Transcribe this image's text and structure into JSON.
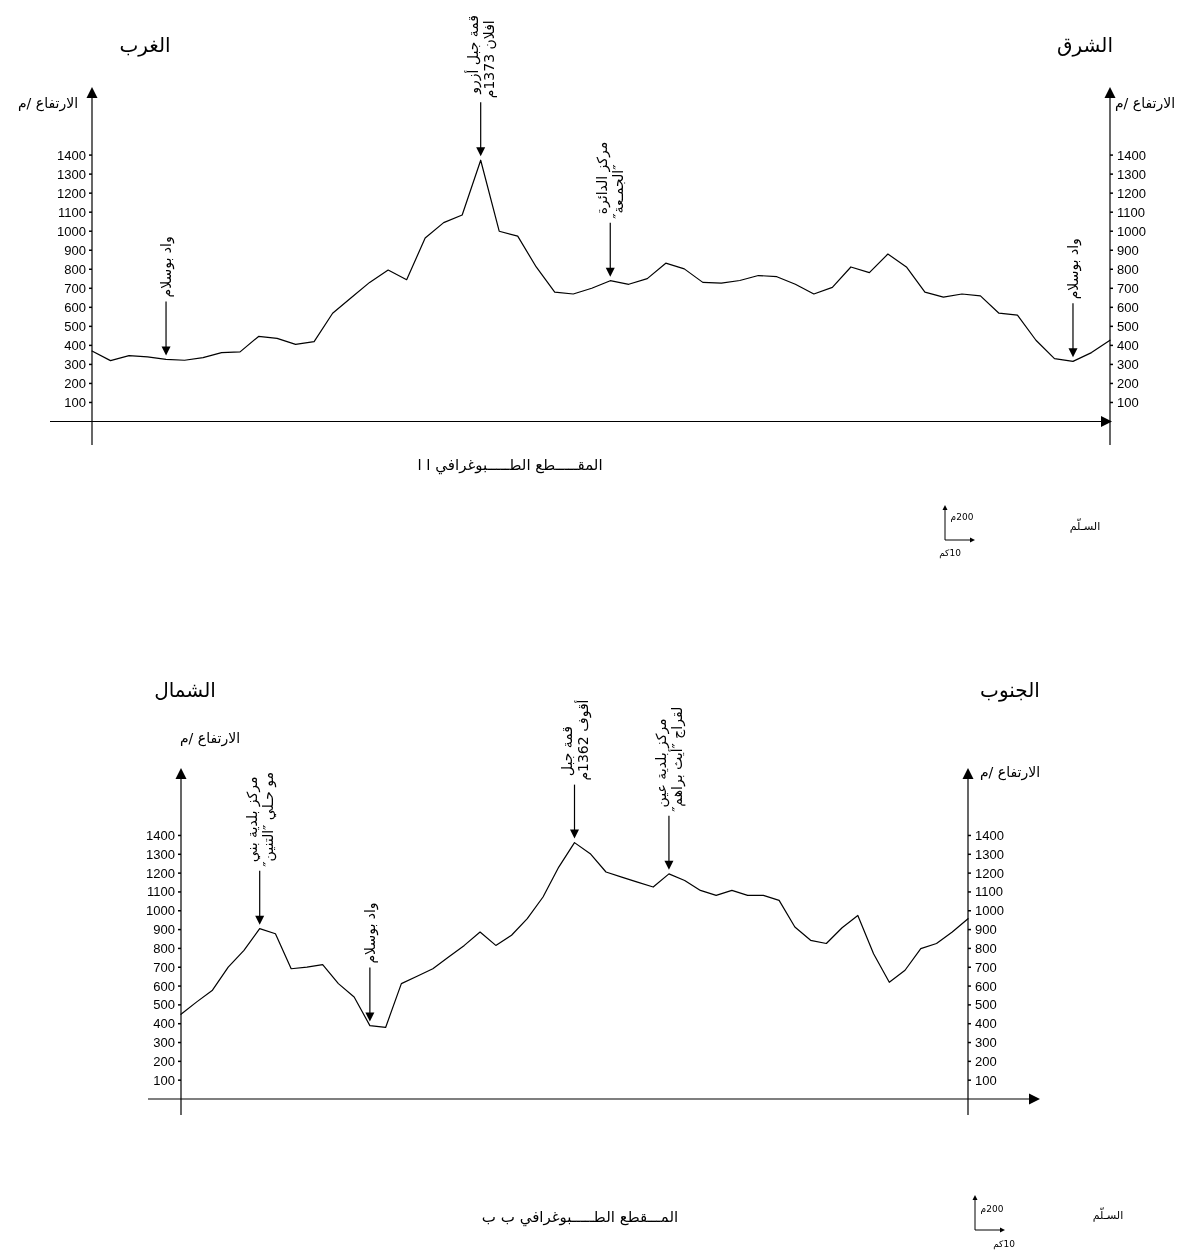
{
  "chart_data": [
    {
      "type": "line",
      "title": "المقـــــطع الطـــــبوغرافي ا ا",
      "ylabel": "الارتفاع /م",
      "y2label": "الارتفاع /م",
      "color": "#000000",
      "categories": [
        null,
        null,
        null,
        null,
        null,
        null,
        null,
        null,
        null,
        null,
        null,
        null,
        null,
        null,
        null,
        null,
        null,
        null,
        null,
        null,
        null,
        null,
        null,
        null,
        null,
        null,
        null,
        null,
        null,
        null,
        null,
        null,
        null,
        null,
        null,
        null,
        null,
        null,
        null,
        null,
        null,
        null,
        null,
        null,
        null,
        null,
        null,
        null,
        null,
        null,
        null,
        null,
        null,
        null,
        null,
        null
      ],
      "values": [
        370,
        320,
        346,
        340,
        326,
        322,
        336,
        362,
        366,
        447,
        437,
        405,
        420,
        569,
        650,
        731,
        796,
        745,
        964,
        1045,
        1085,
        1373,
        1000,
        974,
        812,
        680,
        670,
        700,
        740,
        721,
        751,
        832,
        802,
        731,
        727,
        741,
        767,
        761,
        721,
        670,
        705,
        812,
        782,
        880,
        812,
        680,
        654,
        670,
        660,
        569,
        559,
        427,
        330,
        316,
        362,
        427
      ],
      "ylim": [
        0,
        1700
      ],
      "yticks": [
        100,
        200,
        300,
        400,
        500,
        600,
        700,
        800,
        900,
        1000,
        1100,
        1200,
        1300,
        1400
      ],
      "y2lim": [
        0,
        1700
      ],
      "y2ticks": [
        100,
        200,
        300,
        400,
        500,
        600,
        700,
        800,
        900,
        1000,
        1100,
        1200,
        1300,
        1400
      ],
      "annotations": [
        "الغرب",
        "الشرق",
        "السـلّم",
        "200م",
        "10كم",
        "واد بوسلام",
        "قمة جبل أزرو افلان 1373م",
        "مركز الدائرة ″الجمـعة″",
        "واد بوسلام"
      ]
    },
    {
      "type": "line",
      "title": "المـــقطع الطـــــبوغرافي ب ب",
      "ylabel": "الارتفاع /م",
      "y2label": "الارتفاع /م",
      "color": "#000000",
      "categories": [
        null,
        null,
        null,
        null,
        null,
        null,
        null,
        null,
        null,
        null,
        null,
        null,
        null,
        null,
        null,
        null,
        null,
        null,
        null,
        null,
        null,
        null,
        null,
        null,
        null,
        null,
        null,
        null,
        null,
        null,
        null,
        null,
        null,
        null,
        null,
        null,
        null,
        null,
        null,
        null,
        null,
        null,
        null,
        null,
        null,
        null,
        null,
        null,
        null,
        null,
        null
      ],
      "values": [
        450,
        516,
        578,
        701,
        790,
        905,
        878,
        692,
        701,
        714,
        613,
        542,
        390,
        380,
        613,
        652,
        692,
        754,
        816,
        887,
        816,
        870,
        958,
        1073,
        1232,
        1362,
        1303,
        1206,
        1179,
        1152,
        1126,
        1196,
        1161,
        1108,
        1082,
        1108,
        1082,
        1082,
        1055,
        914,
        843,
        826,
        910,
        975,
        772,
        620,
        684,
        799,
        826,
        887,
        958
      ],
      "ylim": [
        0,
        1700
      ],
      "yticks": [
        100,
        200,
        300,
        400,
        500,
        600,
        700,
        800,
        900,
        1000,
        1100,
        1200,
        1300,
        1400
      ],
      "y2lim": [
        0,
        1700
      ],
      "y2ticks": [
        100,
        200,
        300,
        400,
        500,
        600,
        700,
        800,
        900,
        1000,
        1100,
        1200,
        1300,
        1400
      ],
      "annotations": [
        "الشمال",
        "الجنوب",
        "السـلّم",
        "200م",
        "10كم",
        "مركز بلدية بني مو حـلي ″التنين″",
        "واد بوسلام",
        "قمة جبل أقوف 1362م",
        "مركز بلدية عين لقراج ″أيث براهم″"
      ]
    }
  ]
}
